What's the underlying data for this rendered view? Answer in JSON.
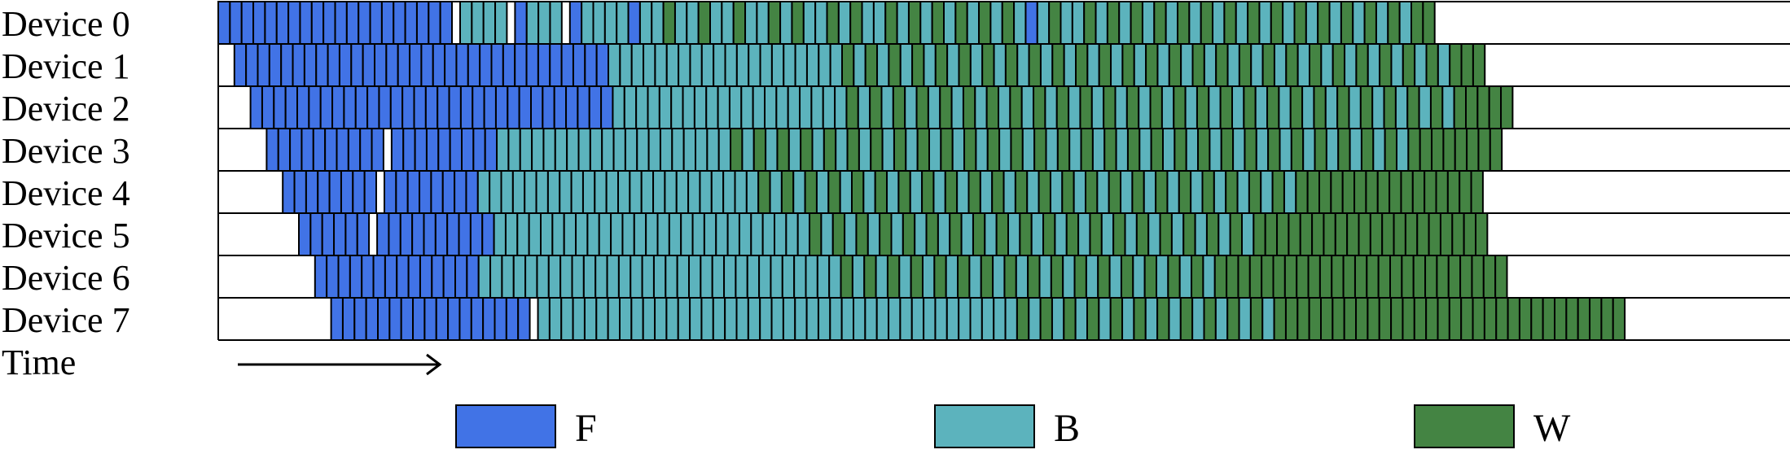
{
  "devices": [
    "Device 0",
    "Device 1",
    "Device 2",
    "Device 3",
    "Device 4",
    "Device 5",
    "Device 6",
    "Device 7"
  ],
  "time_label": "Time",
  "legend": [
    {
      "key": "F",
      "label": "F",
      "color": "#4173e6"
    },
    {
      "key": "B",
      "label": "B",
      "color": "#5cb3bd"
    },
    {
      "key": "W",
      "label": "W",
      "color": "#448443"
    }
  ],
  "schedules": [
    "FFFFFFFFFFFFFFFFFFFF.BBBB.FBBB.FBBBBFBBWBBWBBWBBWBWBBWBWBBWBWBWBWBWBWBFBWBBWBWBWBWBWBWBWBWBWBWBWBWBWBWBWW",
    "FFFFFFFFFFFFFFFFFFFFFFFFFFFFFFFFBBBBBBBBBBBBBBBBBBBBWBWBWBWBWBWBWBWBWBWBWBWBWBWBWBWBWBWBWBWBWBWBWBWBWBWBWWW",
    "FFFFFFFFFFFFFFFFFFFFFFFFFFFFFFFBBBBBBBBBBBBBBBBBBBBWBWBWBWBWBWBWBWBWBWBWBWBWBWBWBWBWBWBWBWBWBWBWBWBWBWBWWWWW",
    "FFFFFFFFFF.FFFFFFFFFBBBBBBBBBBBBBBBBBBBBWBWBWBWBWBWBWBWBWBWBWBWBWBWBWBWBWBWBWBWBWBWBWBWBWBWBWBWBWBWWWWWWWW",
    "FFFFFFFF.FFFFFFFFBBBBBBBBBBBBBBBBBBBBBBBBWBWBWBWBWBWBWBWBWBWBWBWBWBWBWBWBWBWBWBWBWBWBWBWWWWWWWWWWWWWWWW",
    "FFFFFF.FFFFFFFFFFBBBBBBBBBBBBBBBBBBBBBBBBBBBWBWBWBWBWBWBWBWBWBWBWBWBWBWBWBWBWBWBWBWWWWWWWWWWWWWWWWWWWW",
    "FFFFFFFFFFFFFFBBBBBBBBBBBBBBBBBBBBBBBBBBBBBBBWBWBWBWBWBWBWBWBWBWBWBWBWBWBWBWBWWWWWWWWWWWWWWWWWWWWWWWWW",
    "FFFFFFFFFFFFFFFFF.BBBBBBBBBBBBBBBBBBBBBBBBBBBBBBBBBBBBBBBBBWBWBWBWBWBWBWBWBWBWBWBWWWWWWWWWWWWWWWWWWWWWWWWWWWWWW"
  ]
}
